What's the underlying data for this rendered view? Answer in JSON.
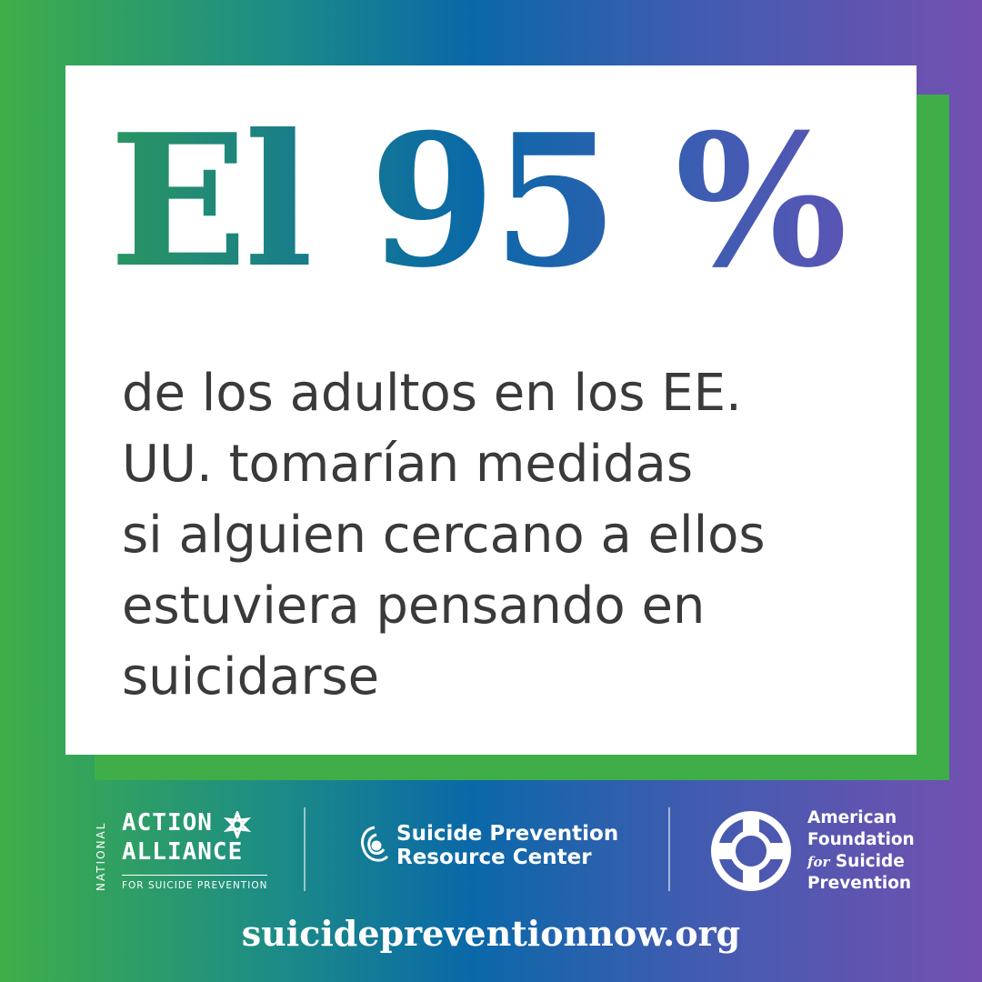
{
  "headline": {
    "part1": "El",
    "part2": "95",
    "part3": "%"
  },
  "body_lines": [
    "de los adultos en los EE.",
    "UU. tomarían medidas",
    "si alguien cercano a ellos",
    "estuviera pensando en",
    "suicidarse"
  ],
  "logos": {
    "naa": {
      "vertical": "NATIONAL",
      "line1": "ACTION",
      "line2": "ALLIANCE",
      "sub": "FOR SUICIDE PREVENTION"
    },
    "sprc": {
      "line1": "Suicide Prevention",
      "line2": "Resource Center"
    },
    "afsp": {
      "line1": "American",
      "line2": "Foundation",
      "line3_for": "for",
      "line3": "Suicide",
      "line4": "Prevention"
    }
  },
  "url": "suicidepreventionnow.org",
  "colors": {
    "green": "#3fae48",
    "teal": "#1c8c86",
    "blue": "#0a68a8",
    "purple": "#7350b0",
    "body_text": "#3a3a3a"
  }
}
